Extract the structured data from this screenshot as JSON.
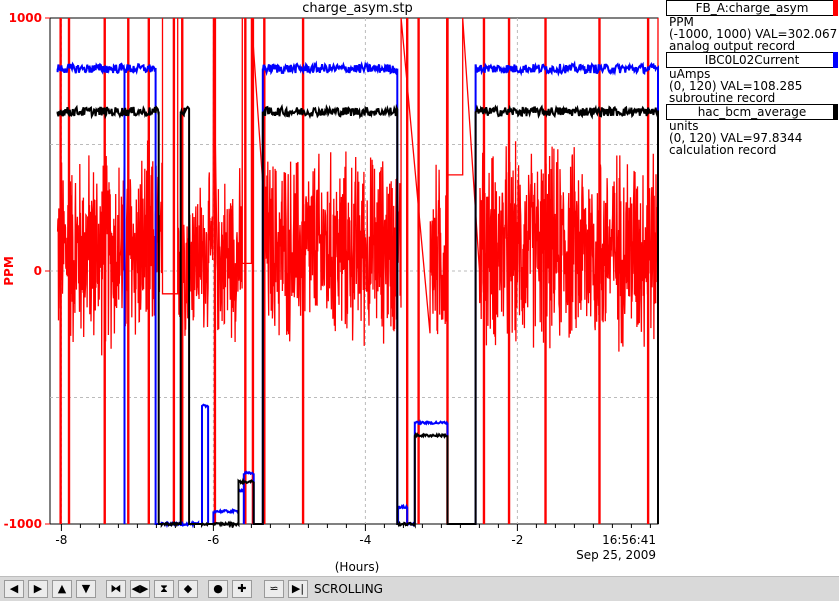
{
  "chart_data": {
    "type": "line",
    "title": "charge_asym.stp",
    "xlabel": "(Hours)",
    "ylabel": "PPM",
    "xlim": [
      -8.15,
      -0.15
    ],
    "ylim": [
      -1000,
      1000
    ],
    "x_ticks": [
      -8,
      -6,
      -4,
      -2
    ],
    "x_tick_labels": [
      "-8",
      "-6",
      "-4",
      "-2"
    ],
    "y_ticks": [
      -1000,
      0,
      1000
    ],
    "y_tick_labels": [
      "-1000",
      "0",
      "1000"
    ],
    "end_time_label": "16:56:41",
    "end_date_label": "Sep 25, 2009",
    "grid": true,
    "legend_position": "right",
    "series": [
      {
        "name": "FB_A:charge_asym",
        "color": "#ff0000",
        "unit": "PPM",
        "range_text": "(-1000, 1000) VAL=302.067",
        "record_type": "analog output record",
        "axis_range": [
          -1000,
          1000
        ],
        "behavior": "noisy",
        "segments": [
          {
            "x": [
              -8.05,
              -6.67
            ],
            "center": 80,
            "amp": 380
          },
          {
            "x": [
              -6.67,
              -6.47
            ],
            "flat": -90
          },
          {
            "x": [
              -6.47,
              -6.0
            ],
            "center": 60,
            "amp": 300
          },
          {
            "x": [
              -5.95,
              -5.62
            ],
            "center": 60,
            "amp": 320
          },
          {
            "x": [
              -5.62,
              -5.5
            ],
            "flat": 30
          },
          {
            "x": [
              -5.32,
              -3.53
            ],
            "center": 90,
            "amp": 360
          },
          {
            "x": [
              -3.15,
              -2.93
            ],
            "center": 60,
            "amp": 350
          },
          {
            "x": [
              -2.92,
              -2.72
            ],
            "flat": 380
          },
          {
            "x": [
              -2.5,
              -0.15
            ],
            "center": 90,
            "amp": 380
          }
        ],
        "spikes": [
          -8.01,
          -7.9,
          -7.43,
          -7.12,
          -6.85,
          -6.52,
          -6.41,
          -5.98,
          -5.58,
          -5.48,
          -5.33,
          -4.82,
          -3.45,
          -3.3,
          -2.92,
          -2.44,
          -2.11,
          -1.63,
          -0.92,
          -0.28
        ]
      },
      {
        "name": "IBC0L02Current",
        "color": "#0000ff",
        "unit": "uAmps",
        "range_text": "(0, 120) VAL=108.285",
        "record_type": "subroutine record",
        "axis_range": [
          0,
          120
        ],
        "behavior": "steps",
        "segments": [
          {
            "x": [
              -8.05,
              -7.17
            ],
            "level": 108
          },
          {
            "x": [
              -7.17,
              -6.76
            ],
            "level": 108
          },
          {
            "x": [
              -6.68,
              -6.55
            ],
            "level": 0
          },
          {
            "x": [
              -6.55,
              -6.2
            ],
            "level": 0
          },
          {
            "x": [
              -6.15,
              -6.07
            ],
            "level": 28
          },
          {
            "x": [
              -6.0,
              -5.67
            ],
            "level": 3
          },
          {
            "x": [
              -5.67,
              -5.6
            ],
            "level": 8
          },
          {
            "x": [
              -5.6,
              -5.47
            ],
            "level": 12
          },
          {
            "x": [
              -5.35,
              -3.58
            ],
            "level": 108
          },
          {
            "x": [
              -3.57,
              -3.45
            ],
            "level": 4
          },
          {
            "x": [
              -3.45,
              -3.35
            ],
            "level": 0
          },
          {
            "x": [
              -3.35,
              -2.92
            ],
            "level": 24
          },
          {
            "x": [
              -2.55,
              -0.15
            ],
            "level": 108
          }
        ]
      },
      {
        "name": "hac_bcm_average",
        "color": "#000000",
        "unit": "units",
        "range_text": "(0, 120) VAL=97.8344",
        "record_type": "calculation record",
        "axis_range": [
          0,
          120
        ],
        "behavior": "steps",
        "segments": [
          {
            "x": [
              -8.05,
              -6.72
            ],
            "level": 97.8
          },
          {
            "x": [
              -6.68,
              -6.45
            ],
            "level": 0
          },
          {
            "x": [
              -6.43,
              -6.32
            ],
            "level": 97.8
          },
          {
            "x": [
              -6.15,
              -6.07
            ],
            "level": 0
          },
          {
            "x": [
              -6.0,
              -5.67
            ],
            "level": 0
          },
          {
            "x": [
              -5.67,
              -5.47
            ],
            "level": 10
          },
          {
            "x": [
              -5.35,
              -3.58
            ],
            "level": 97.8
          },
          {
            "x": [
              -3.57,
              -3.35
            ],
            "level": 0
          },
          {
            "x": [
              -3.35,
              -2.92
            ],
            "level": 21
          },
          {
            "x": [
              -2.55,
              -0.15
            ],
            "level": 97.8
          }
        ]
      }
    ]
  },
  "toolbar": {
    "buttons": [
      {
        "name": "scroll-left",
        "glyph": "◀"
      },
      {
        "name": "scroll-right",
        "glyph": "▶"
      },
      {
        "name": "scroll-up",
        "glyph": "▲"
      },
      {
        "name": "scroll-down",
        "glyph": "▼"
      },
      {
        "name": "zoom-in-horizontal",
        "glyph": "⧓"
      },
      {
        "name": "zoom-out-horizontal",
        "glyph": "◀▶"
      },
      {
        "name": "zoom-in-vertical",
        "glyph": "⧗"
      },
      {
        "name": "zoom-out-vertical",
        "glyph": "◆"
      },
      {
        "name": "reset",
        "glyph": "●"
      },
      {
        "name": "add",
        "glyph": "✚"
      },
      {
        "name": "fit",
        "glyph": "⋍"
      },
      {
        "name": "back-to-live",
        "glyph": "▶|"
      }
    ],
    "status": "SCROLLING"
  }
}
